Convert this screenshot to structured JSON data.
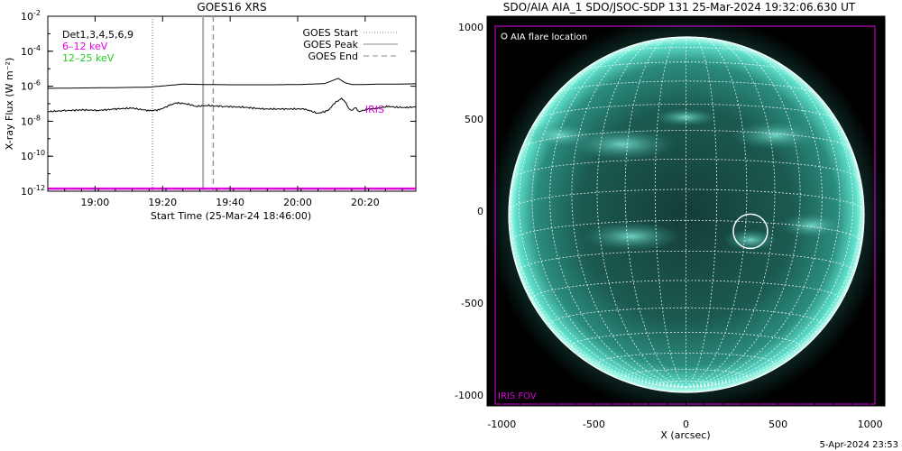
{
  "chart_data": [
    {
      "type": "line",
      "title": "GOES16 XRS",
      "xlabel": "Start Time (25-Mar-24 18:46:00)",
      "ylabel": "X-ray Flux (W m⁻²)",
      "x_unit": "minutes after 18:46:00",
      "xlim": [
        0,
        109
      ],
      "ylim_log10": [
        -12,
        -2
      ],
      "y_scale": "log",
      "x_ticks": [
        {
          "x": 14,
          "label": "19:00"
        },
        {
          "x": 34,
          "label": "19:20"
        },
        {
          "x": 54,
          "label": "19:40"
        },
        {
          "x": 74,
          "label": "20:00"
        },
        {
          "x": 94,
          "label": "20:20"
        }
      ],
      "y_ticks": [
        {
          "exp": -2,
          "label": "10",
          "sup": "-2"
        },
        {
          "exp": -4,
          "label": "10",
          "sup": "-4"
        },
        {
          "exp": -6,
          "label": "10",
          "sup": "-6"
        },
        {
          "exp": -8,
          "label": "10",
          "sup": "-8"
        },
        {
          "exp": -10,
          "label": "10",
          "sup": "-10"
        },
        {
          "exp": -12,
          "label": "10",
          "sup": "-12"
        }
      ],
      "legend_left": [
        {
          "text": "Det1,3,4,5,6,9",
          "color": "#000000"
        },
        {
          "text": "6–12 keV",
          "color": "#e000e0"
        },
        {
          "text": "12–25 keV",
          "color": "#22cc22"
        }
      ],
      "legend_right": [
        {
          "text": "GOES Start",
          "style": "dotted"
        },
        {
          "text": "GOES Peak",
          "style": "solid"
        },
        {
          "text": "GOES End",
          "style": "dashed"
        }
      ],
      "legend_placement": "top-right",
      "vlines": [
        {
          "x": 31,
          "style": "dotted",
          "color": "#999999"
        },
        {
          "x": 46,
          "style": "solid",
          "color": "#aaaaaa"
        },
        {
          "x": 49,
          "style": "dashed",
          "color": "#999999"
        }
      ],
      "iris_label": "IRIS",
      "iris_label_x": 94,
      "iris_label_log10": -7.3,
      "series": [
        {
          "color": "#000000",
          "x": [
            0,
            10,
            20,
            30,
            36,
            40,
            46,
            55,
            65,
            75,
            82,
            86,
            88,
            90,
            94,
            98,
            103,
            109
          ],
          "log10": [
            -6.12,
            -6.1,
            -6.08,
            -6.05,
            -5.95,
            -5.88,
            -5.9,
            -5.92,
            -5.92,
            -5.9,
            -5.85,
            -5.55,
            -5.8,
            -5.9,
            -5.9,
            -5.88,
            -5.88,
            -5.86
          ]
        },
        {
          "color": "#000000",
          "x": [
            0,
            5,
            10,
            15,
            20,
            25,
            30,
            33,
            36,
            38,
            41,
            44,
            47,
            52,
            58,
            64,
            70,
            76,
            80,
            83,
            85,
            87,
            88,
            89,
            90,
            91,
            92,
            95,
            98,
            101,
            103,
            106,
            109
          ],
          "log10": [
            -7.45,
            -7.4,
            -7.35,
            -7.38,
            -7.3,
            -7.25,
            -7.4,
            -7.35,
            -7.1,
            -6.95,
            -7.0,
            -7.15,
            -7.1,
            -7.15,
            -7.2,
            -7.3,
            -7.3,
            -7.3,
            -7.55,
            -7.4,
            -6.95,
            -6.7,
            -6.85,
            -7.25,
            -7.4,
            -7.2,
            -7.45,
            -7.3,
            -7.25,
            -7.15,
            -7.2,
            -7.22,
            -7.18
          ]
        },
        {
          "color": "#e000e0",
          "x": [
            0,
            109
          ],
          "log10": [
            -11.85,
            -11.85
          ]
        }
      ]
    },
    {
      "type": "image",
      "title": "SDO/AIA AIA_1 SDO/JSOC-SDP 131 25-Mar-2024 19:32:06.630 UT",
      "xlabel": "X (arcsec)",
      "xlim": [
        -1080,
        1080
      ],
      "ylim": [
        -1060,
        1060
      ],
      "x_ticks": [
        -1000,
        -500,
        0,
        500,
        1000
      ],
      "y_ticks": [
        -1000,
        -500,
        0,
        500,
        1000
      ],
      "legend_text": "AIA flare location",
      "legend_placement": "top-left",
      "fov_label": "IRIS FOV",
      "fov_color": "#e000e0",
      "flare_location": [
        350,
        -110
      ],
      "solar_radius_arcsec": 965
    }
  ],
  "footer": {
    "timestamp": "5-Apr-2024 23:53"
  }
}
